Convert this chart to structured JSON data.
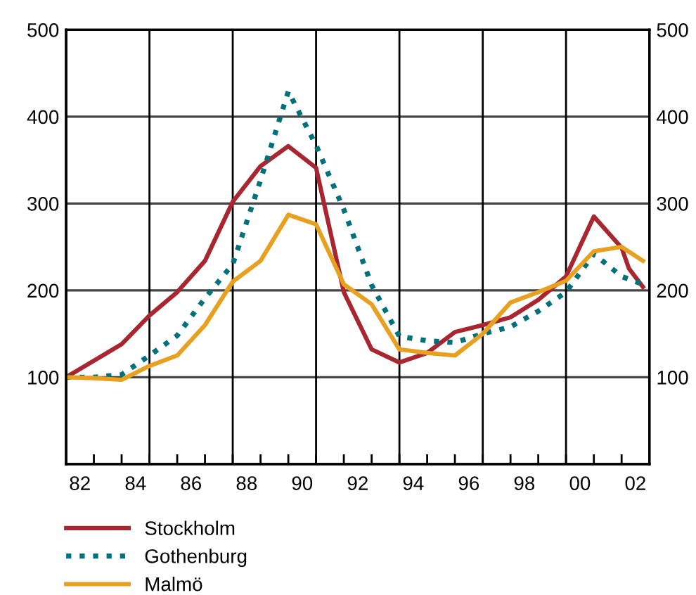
{
  "chart_data": {
    "type": "line",
    "xlim": [
      "1982",
      "2003"
    ],
    "ylim": [
      0,
      500
    ],
    "yticks": [
      100,
      200,
      300,
      400,
      500
    ],
    "y2lim": [
      0,
      500
    ],
    "y2ticks": [
      100,
      200,
      300,
      400,
      500
    ],
    "xticks": [
      {
        "value": "1982-07-02",
        "label": "82"
      },
      {
        "value": "1984-07-02",
        "label": "84"
      },
      {
        "value": "1986-07-02",
        "label": "86"
      },
      {
        "value": "1988-07-02",
        "label": "88"
      },
      {
        "value": "1990-07-02",
        "label": "90"
      },
      {
        "value": "1992-07-02",
        "label": "92"
      },
      {
        "value": "1994-07-02",
        "label": "94"
      },
      {
        "value": "1996-07-02",
        "label": "96"
      },
      {
        "value": "1998-07-02",
        "label": "98"
      },
      {
        "value": "2000-07-02",
        "label": "00"
      },
      {
        "value": "2002-07-02",
        "label": "02"
      },
      {
        "value": "1983",
        "label": null
      },
      {
        "value": "1984",
        "label": null
      },
      {
        "value": "1985",
        "label": null
      },
      {
        "value": "1986",
        "label": null
      },
      {
        "value": "1987",
        "label": null
      },
      {
        "value": "1988",
        "label": null
      },
      {
        "value": "1989",
        "label": null
      },
      {
        "value": "1990",
        "label": null
      },
      {
        "value": "1991",
        "label": null
      },
      {
        "value": "1992",
        "label": null
      },
      {
        "value": "1993",
        "label": null
      },
      {
        "value": "1994",
        "label": null
      },
      {
        "value": "1995",
        "label": null
      },
      {
        "value": "1996",
        "label": null
      },
      {
        "value": "1997",
        "label": null
      },
      {
        "value": "1998",
        "label": null
      },
      {
        "value": "1999",
        "label": null
      },
      {
        "value": "2000",
        "label": null
      },
      {
        "value": "2001",
        "label": null
      },
      {
        "value": "2002",
        "label": null
      }
    ],
    "grid": "y",
    "ref_lines": [
      {
        "axis": "x",
        "value": "1985",
        "color": "#000000"
      },
      {
        "axis": "x",
        "value": "1988",
        "color": "#000000"
      },
      {
        "axis": "x",
        "value": "1991",
        "color": "#000000"
      },
      {
        "axis": "x",
        "value": "1994",
        "color": "#000000"
      },
      {
        "axis": "x",
        "value": "1997",
        "color": "#000000"
      },
      {
        "axis": "x",
        "value": "2000",
        "color": "#000000"
      }
    ],
    "legend": "bottom",
    "series": [
      {
        "name": "Stockholm",
        "color": "#a8262f",
        "line_style": "solid",
        "x": [
          "1982",
          "1983",
          "1984",
          "1985",
          "1986",
          "1987",
          "1988",
          "1989",
          "1990",
          "1991",
          "1992",
          "1993",
          "1994",
          "1995",
          "1996",
          "1997",
          "1998",
          "1999",
          "2000",
          "2001",
          "2002",
          "2002-04-08",
          "2002-10-08"
        ],
        "values": [
          100,
          119,
          138,
          171,
          198,
          234,
          302,
          343,
          366,
          341,
          198,
          132,
          117,
          128,
          152,
          160,
          169,
          189,
          216,
          285,
          249,
          225,
          204
        ]
      },
      {
        "name": "Gothenburg",
        "color": "#00707a",
        "line_style": "dotted",
        "x": [
          "1982",
          "1983",
          "1984",
          "1985",
          "1986",
          "1987",
          "1988",
          "1989",
          "1990",
          "1991",
          "1992",
          "1993",
          "1994",
          "1995",
          "1996",
          "1997",
          "1998",
          "1999",
          "2000",
          "2001",
          "2002",
          "2002-10-08"
        ],
        "values": [
          100,
          100,
          103,
          125,
          148,
          191,
          230,
          327,
          429,
          367,
          293,
          206,
          147,
          142,
          140,
          150,
          158,
          176,
          198,
          242,
          216,
          207
        ]
      },
      {
        "name": "Malmö",
        "color": "#e8a020",
        "line_style": "solid",
        "x": [
          "1982",
          "1983",
          "1984",
          "1985",
          "1986",
          "1987",
          "1988",
          "1989",
          "1990",
          "1991",
          "1992",
          "1993",
          "1994",
          "1995",
          "1996",
          "1997",
          "1998",
          "1999",
          "2000",
          "2001",
          "2002",
          "2002-10-08"
        ],
        "values": [
          100,
          99,
          97,
          113,
          125,
          160,
          210,
          234,
          287,
          276,
          207,
          184,
          132,
          128,
          125,
          150,
          186,
          198,
          211,
          245,
          250,
          234
        ]
      }
    ]
  }
}
